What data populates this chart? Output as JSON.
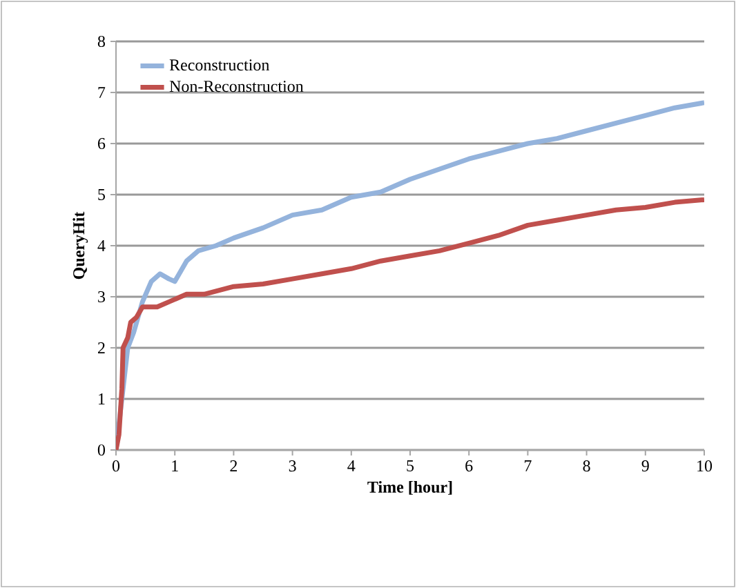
{
  "chart_data": {
    "type": "line",
    "xlabel": "Time [hour]",
    "ylabel": "QueryHit",
    "xlim": [
      0,
      10
    ],
    "ylim": [
      0,
      8
    ],
    "xticks": [
      0,
      1,
      2,
      3,
      4,
      5,
      6,
      7,
      8,
      9,
      10
    ],
    "yticks": [
      0,
      1,
      2,
      3,
      4,
      5,
      6,
      7,
      8
    ],
    "grid": "y",
    "legend": "top left",
    "marker": "none",
    "line_style": "solid",
    "series": [
      {
        "name": "Reconstruction",
        "color": "#94b3dc",
        "x": [
          0,
          0.05,
          0.1,
          0.2,
          0.3,
          0.45,
          0.6,
          0.75,
          0.9,
          1.0,
          1.2,
          1.4,
          1.7,
          2.0,
          2.5,
          3,
          3.5,
          4,
          4.5,
          5,
          5.5,
          6,
          6.5,
          7,
          7.5,
          8,
          8.5,
          9,
          9.5,
          10
        ],
        "values": [
          0,
          0.5,
          1.0,
          2.0,
          2.3,
          2.9,
          3.3,
          3.45,
          3.35,
          3.3,
          3.7,
          3.9,
          4.0,
          4.15,
          4.35,
          4.6,
          4.7,
          4.95,
          5.05,
          5.3,
          5.5,
          5.7,
          5.85,
          6.0,
          6.1,
          6.25,
          6.4,
          6.55,
          6.7,
          6.8
        ]
      },
      {
        "name": "Non-Reconstruction",
        "color": "#c0504d",
        "x": [
          0,
          0.05,
          0.1,
          0.12,
          0.2,
          0.25,
          0.35,
          0.45,
          0.7,
          0.9,
          1.2,
          1.5,
          2,
          2.5,
          3,
          3.5,
          4,
          4.5,
          5,
          5.5,
          6,
          6.5,
          7,
          7.5,
          8,
          8.5,
          9,
          9.5,
          10
        ],
        "values": [
          0,
          0.3,
          1.2,
          2.0,
          2.2,
          2.5,
          2.6,
          2.8,
          2.8,
          2.9,
          3.05,
          3.05,
          3.2,
          3.25,
          3.35,
          3.45,
          3.55,
          3.7,
          3.8,
          3.9,
          4.05,
          4.2,
          4.4,
          4.5,
          4.6,
          4.7,
          4.75,
          4.85,
          4.9
        ]
      }
    ]
  }
}
